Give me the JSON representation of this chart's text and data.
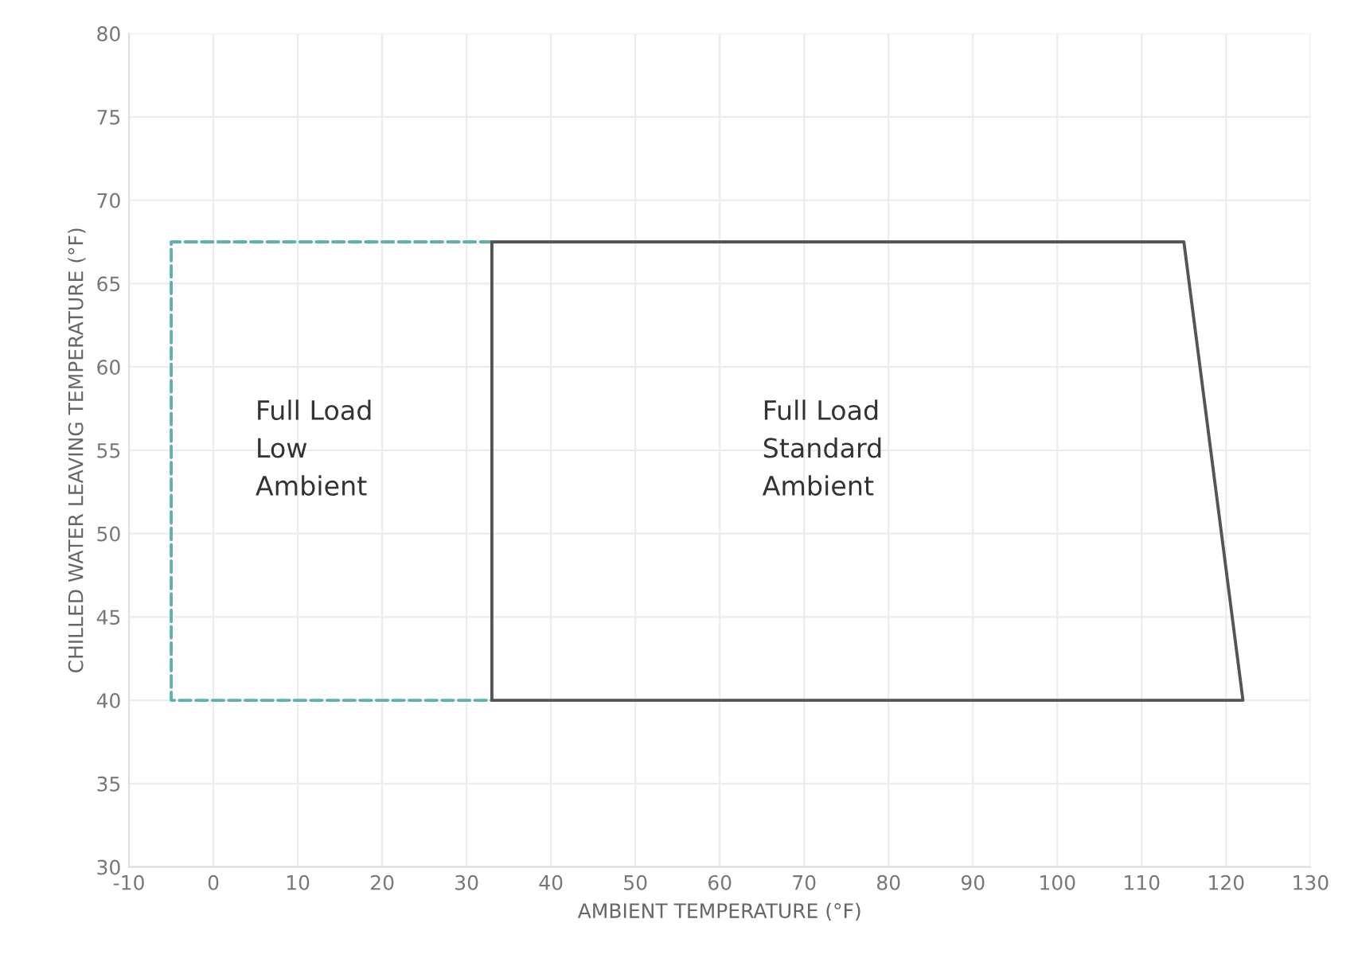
{
  "chart_data": {
    "type": "line",
    "xlabel": "AMBIENT TEMPERATURE (°F)",
    "ylabel": "CHILLED WATER LEAVING TEMPERATURE (°F)",
    "series": [
      {
        "x": [
          33,
          -5,
          -5,
          33
        ],
        "values": [
          67.5,
          67.5,
          40,
          40
        ],
        "color": "#5fb0b0",
        "line_style": "dashed"
      },
      {
        "x": [
          33,
          122,
          115,
          33
        ],
        "values": [
          40,
          40,
          67.5,
          67.5
        ],
        "color": "#555555",
        "line_style": "solid"
      },
      {
        "x": [
          33,
          33
        ],
        "values": [
          40,
          67.5
        ],
        "color": "#555555",
        "line_style": "solid"
      }
    ],
    "annotations": [
      "Full Load\nLow\nAmbient",
      "Full Load\nStandard\nAmbient"
    ],
    "xlim": [
      -10,
      130
    ],
    "xticks": [
      {
        "value": -10,
        "label": "-10"
      },
      0,
      10,
      20,
      30,
      40,
      50,
      60,
      70,
      80,
      90,
      100,
      110,
      120,
      130
    ],
    "ylim": [
      30,
      80
    ],
    "yticks": [
      30,
      35,
      40,
      45,
      50,
      55,
      60,
      65,
      70,
      75,
      80
    ],
    "grid": true,
    "marker": "none"
  }
}
